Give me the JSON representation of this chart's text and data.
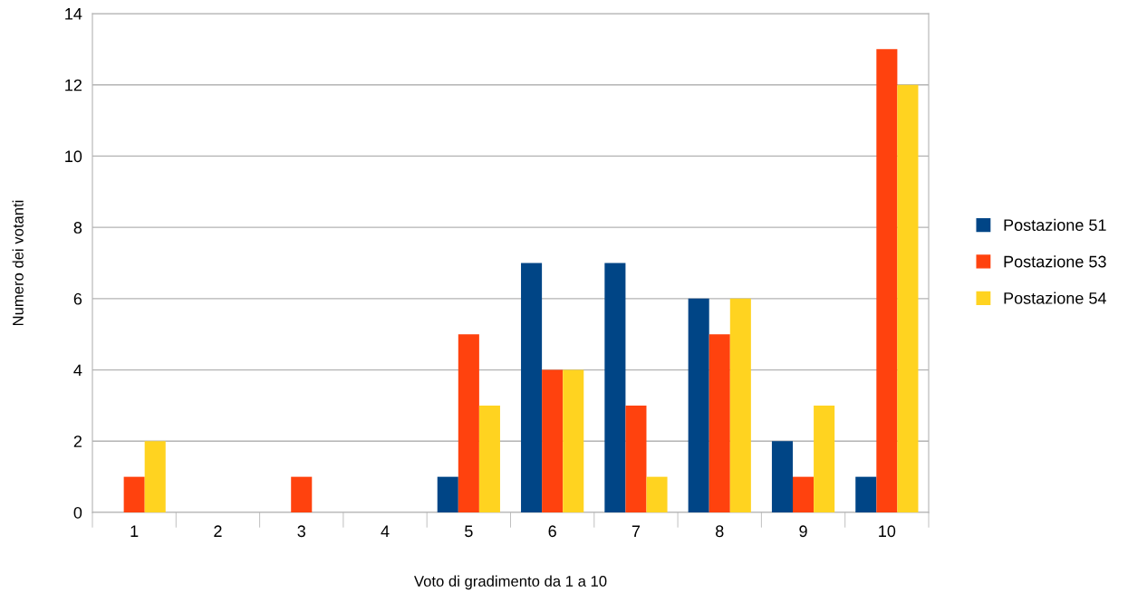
{
  "chart_data": {
    "type": "bar",
    "xlabel": "Voto di gradimento da 1 a 10",
    "ylabel": "Numero dei votanti",
    "categories": [
      "1",
      "2",
      "3",
      "4",
      "5",
      "6",
      "7",
      "8",
      "9",
      "10"
    ],
    "series": [
      {
        "name": "Postazione 51",
        "color": "#004586",
        "values": [
          0,
          0,
          0,
          0,
          1,
          7,
          7,
          6,
          2,
          1
        ]
      },
      {
        "name": "Postazione 53",
        "color": "#ff420e",
        "values": [
          1,
          0,
          1,
          0,
          5,
          4,
          3,
          5,
          1,
          13
        ]
      },
      {
        "name": "Postazione 54",
        "color": "#ffd320",
        "values": [
          2,
          0,
          0,
          0,
          3,
          4,
          1,
          6,
          3,
          12
        ]
      }
    ],
    "ylim": [
      0,
      14
    ],
    "yticks": [
      0,
      2,
      4,
      6,
      8,
      10,
      12,
      14
    ],
    "grid": "y",
    "legend": "right"
  }
}
